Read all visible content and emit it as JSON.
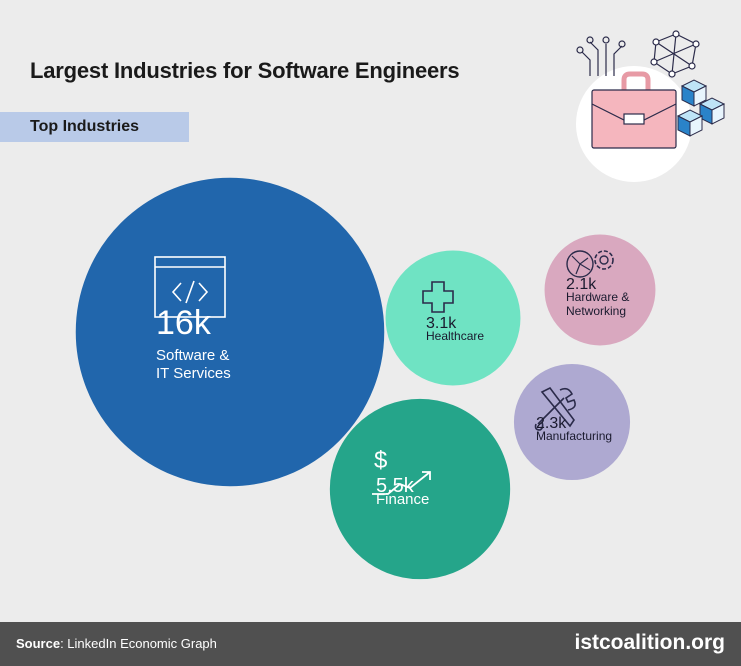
{
  "header": {
    "title": "Largest Industries for Software Engineers",
    "tag": "Top Industries"
  },
  "footer": {
    "source_label": "Source",
    "source_text": ": LinkedIn Economic Graph",
    "site": "istcoalition.org"
  },
  "hero_icon": "briefcase-network-icon",
  "chart_data": {
    "type": "bubble",
    "title": "Largest Industries for Software Engineers",
    "subtitle": "Top Industries",
    "series": [
      {
        "label": "Software & IT Services",
        "lines": [
          "Software &",
          "IT Services"
        ],
        "value": 16000,
        "value_text": "16k",
        "color": "#2166ac",
        "icon": "code-window-icon"
      },
      {
        "label": "Finance",
        "lines": [
          "Finance"
        ],
        "value": 5500,
        "value_text": "5.5k",
        "color": "#25a58a",
        "icon": "dollar-growth-icon"
      },
      {
        "label": "Healthcare",
        "lines": [
          "Healthcare"
        ],
        "value": 3100,
        "value_text": "3.1k",
        "color": "#6fe3c3",
        "icon": "medical-cross-icon"
      },
      {
        "label": "Manufacturing",
        "lines": [
          "Manufacturing"
        ],
        "value": 2300,
        "value_text": "2.3k",
        "color": "#aea9d1",
        "icon": "tools-icon"
      },
      {
        "label": "Hardware & Networking",
        "lines": [
          "Hardware &",
          "Networking"
        ],
        "value": 2100,
        "value_text": "2.1k",
        "color": "#d9a8bf",
        "icon": "gears-network-icon"
      }
    ]
  },
  "colors": {
    "background": "#ececec",
    "tag_bg": "#b9cae8",
    "footer_bg": "#505050"
  }
}
